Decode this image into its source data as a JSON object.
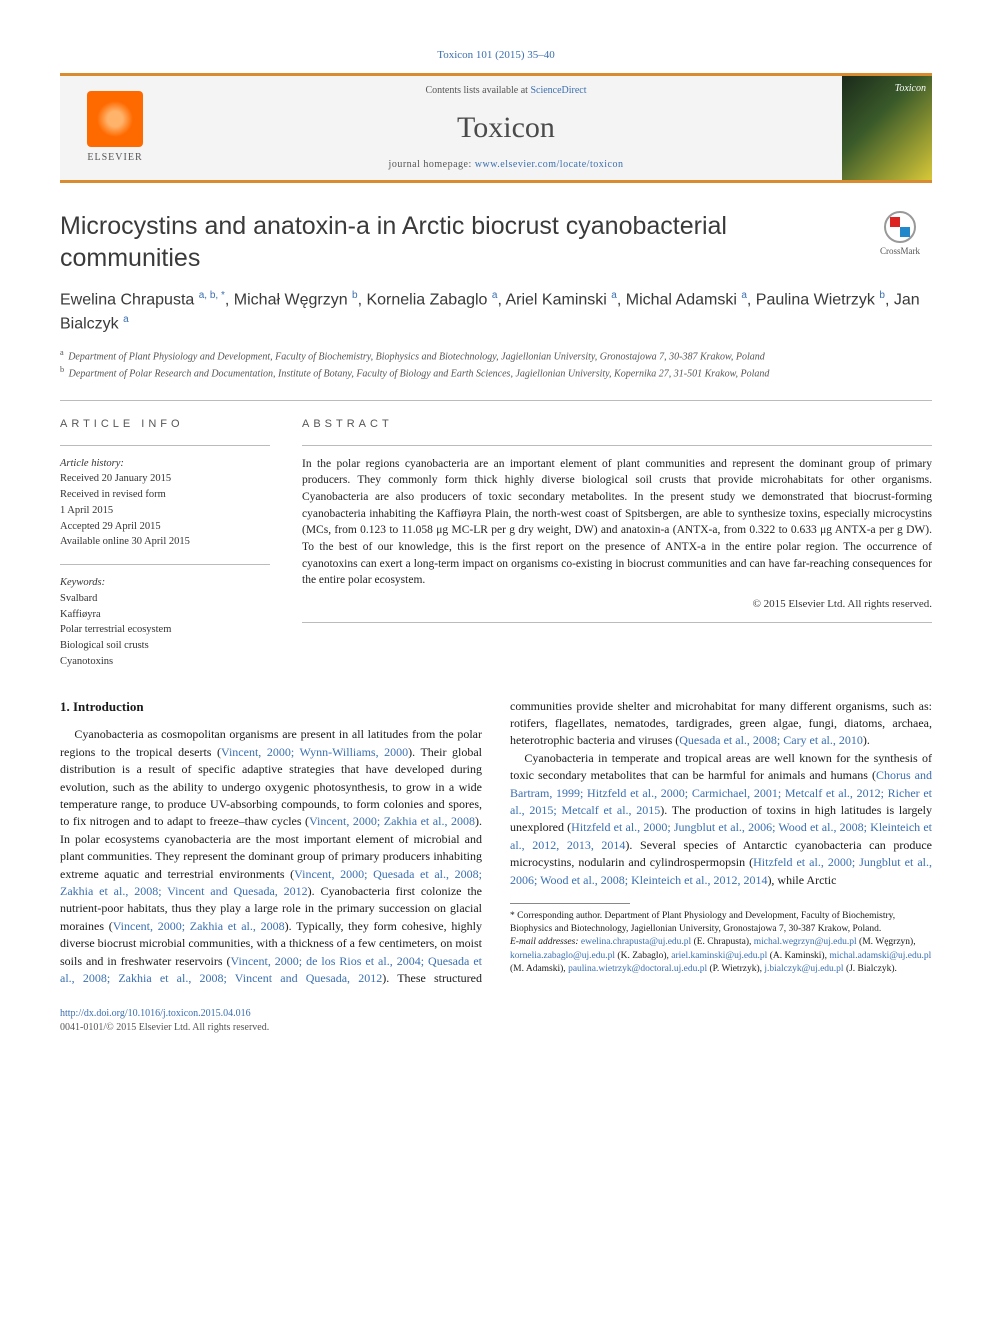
{
  "citation": "Toxicon 101 (2015) 35–40",
  "masthead": {
    "publisher": "ELSEVIER",
    "contents_prefix": "Contents lists available at ",
    "contents_link": "ScienceDirect",
    "journal": "Toxicon",
    "homepage_prefix": "journal homepage: ",
    "homepage_url": "www.elsevier.com/locate/toxicon",
    "cover_label": "Toxicon",
    "accent_color": "#d98b2e"
  },
  "crossmark_label": "CrossMark",
  "title": "Microcystins and anatoxin-a in Arctic biocrust cyanobacterial communities",
  "authors_html": "Ewelina Chrapusta <sup>a, b, *</sup>, Michał Węgrzyn <sup>b</sup>, Kornelia Zabaglo <sup>a</sup>, Ariel Kaminski <sup>a</sup>, Michal Adamski <sup>a</sup>, Paulina Wietrzyk <sup>b</sup>, Jan Bialczyk <sup>a</sup>",
  "affiliations": [
    {
      "key": "a",
      "text": "Department of Plant Physiology and Development, Faculty of Biochemistry, Biophysics and Biotechnology, Jagiellonian University, Gronostajowa 7, 30-387 Krakow, Poland"
    },
    {
      "key": "b",
      "text": "Department of Polar Research and Documentation, Institute of Botany, Faculty of Biology and Earth Sciences, Jagiellonian University, Kopernika 27, 31-501 Krakow, Poland"
    }
  ],
  "article_info": {
    "label": "ARTICLE INFO",
    "history_hdr": "Article history:",
    "history": [
      "Received 20 January 2015",
      "Received in revised form",
      "1 April 2015",
      "Accepted 29 April 2015",
      "Available online 30 April 2015"
    ],
    "keywords_hdr": "Keywords:",
    "keywords": [
      "Svalbard",
      "Kaffiøyra",
      "Polar terrestrial ecosystem",
      "Biological soil crusts",
      "Cyanotoxins"
    ]
  },
  "abstract": {
    "label": "ABSTRACT",
    "text": "In the polar regions cyanobacteria are an important element of plant communities and represent the dominant group of primary producers. They commonly form thick highly diverse biological soil crusts that provide microhabitats for other organisms. Cyanobacteria are also producers of toxic secondary metabolites. In the present study we demonstrated that biocrust-forming cyanobacteria inhabiting the Kaffiøyra Plain, the north-west coast of Spitsbergen, are able to synthesize toxins, especially microcystins (MCs, from 0.123 to 11.058 μg MC-LR per g dry weight, DW) and anatoxin-a (ANTX-a, from 0.322 to 0.633 μg ANTX-a per g DW). To the best of our knowledge, this is the first report on the presence of ANTX-a in the entire polar region. The occurrence of cyanotoxins can exert a long-term impact on organisms co-existing in biocrust communities and can have far-reaching consequences for the entire polar ecosystem.",
    "copyright": "© 2015 Elsevier Ltd. All rights reserved."
  },
  "intro": {
    "heading": "1. Introduction",
    "p1_pre": "Cyanobacteria as cosmopolitan organisms are present in all latitudes from the polar regions to the tropical deserts (",
    "p1_ref1": "Vincent, 2000; Wynn-Williams, 2000",
    "p1_mid1": "). Their global distribution is a result of specific adaptive strategies that have developed during evolution, such as the ability to undergo oxygenic photosynthesis, to grow in a wide temperature range, to produce UV-absorbing compounds, to form colonies and spores, to fix nitrogen and to adapt to freeze–thaw cycles (",
    "p1_ref2": "Vincent, 2000; Zakhia et al., 2008",
    "p1_mid2": "). In polar ecosystems cyanobacteria are the most important element of microbial and plant communities. They represent the dominant group of primary producers inhabiting extreme aquatic and terrestrial environments (",
    "p1_ref3": "Vincent, 2000; Quesada et al., 2008;",
    "p1_col2_ref1": "Zakhia et al., 2008; Vincent and Quesada, 2012",
    "p1_col2_a": "). Cyanobacteria first colonize the nutrient-poor habitats, thus they play a large role in the primary succession on glacial moraines (",
    "p1_col2_ref2": "Vincent, 2000; Zakhia et al., 2008",
    "p1_col2_b": "). Typically, they form cohesive, highly diverse biocrust microbial communities, with a thickness of a few centimeters, on moist soils and in freshwater reservoirs (",
    "p1_col2_ref3": "Vincent, 2000; de los Rios et al., 2004; Quesada et al., 2008; Zakhia et al., 2008; Vincent and Quesada, 2012",
    "p1_col2_c": "). These structured communities provide shelter and microhabitat for many different organisms, such as: rotifers, flagellates, nematodes, tardigrades, green algae, fungi, diatoms, archaea, heterotrophic bacteria and viruses (",
    "p1_col2_ref4": "Quesada et al., 2008; Cary et al., 2010",
    "p1_col2_d": ").",
    "p2_a": "Cyanobacteria in temperate and tropical areas are well known for the synthesis of toxic secondary metabolites that can be harmful for animals and humans (",
    "p2_ref1": "Chorus and Bartram, 1999; Hitzfeld et al., 2000; Carmichael, 2001; Metcalf et al., 2012; Richer et al., 2015; Metcalf et al., 2015",
    "p2_b": "). The production of toxins in high latitudes is largely unexplored (",
    "p2_ref2": "Hitzfeld et al., 2000; Jungblut et al., 2006; Wood et al., 2008; Kleinteich et al., 2012, 2013, 2014",
    "p2_c": "). Several species of Antarctic cyanobacteria can produce microcystins, nodularin and cylindrospermopsin (",
    "p2_ref3": "Hitzfeld et al., 2000; Jungblut et al., 2006; Wood et al., 2008; Kleinteich et al., 2012, 2014",
    "p2_d": "), while Arctic"
  },
  "corresponding": {
    "star": "*",
    "text": "Corresponding author. Department of Plant Physiology and Development, Faculty of Biochemistry, Biophysics and Biotechnology, Jagiellonian University, Gronostajowa 7, 30-387 Krakow, Poland.",
    "email_label": "E-mail addresses: ",
    "emails": [
      {
        "addr": "ewelina.chrapusta@uj.edu.pl",
        "who": " (E. Chrapusta), "
      },
      {
        "addr": "michal.wegrzyn@uj.edu.pl",
        "who": " (M. Węgrzyn), "
      },
      {
        "addr": "kornelia.zabaglo@uj.edu.pl",
        "who": " (K. Zabaglo), "
      },
      {
        "addr": "ariel.kaminski@uj.edu.pl",
        "who": " (A. Kaminski), "
      },
      {
        "addr": "michal.adamski@uj.edu.pl",
        "who": " (M. Adamski), "
      },
      {
        "addr": "paulina.wietrzyk@doctoral.uj.edu.pl",
        "who": " (P. Wietrzyk), "
      },
      {
        "addr": "j.bialczyk@uj.edu.pl",
        "who": " (J. Bialczyk)."
      }
    ]
  },
  "footer": {
    "doi": "http://dx.doi.org/10.1016/j.toxicon.2015.04.016",
    "issn_line": "0041-0101/© 2015 Elsevier Ltd. All rights reserved."
  },
  "colors": {
    "link": "#3b6fb0",
    "accent": "#d98b2e",
    "text": "#1a1a1a"
  }
}
